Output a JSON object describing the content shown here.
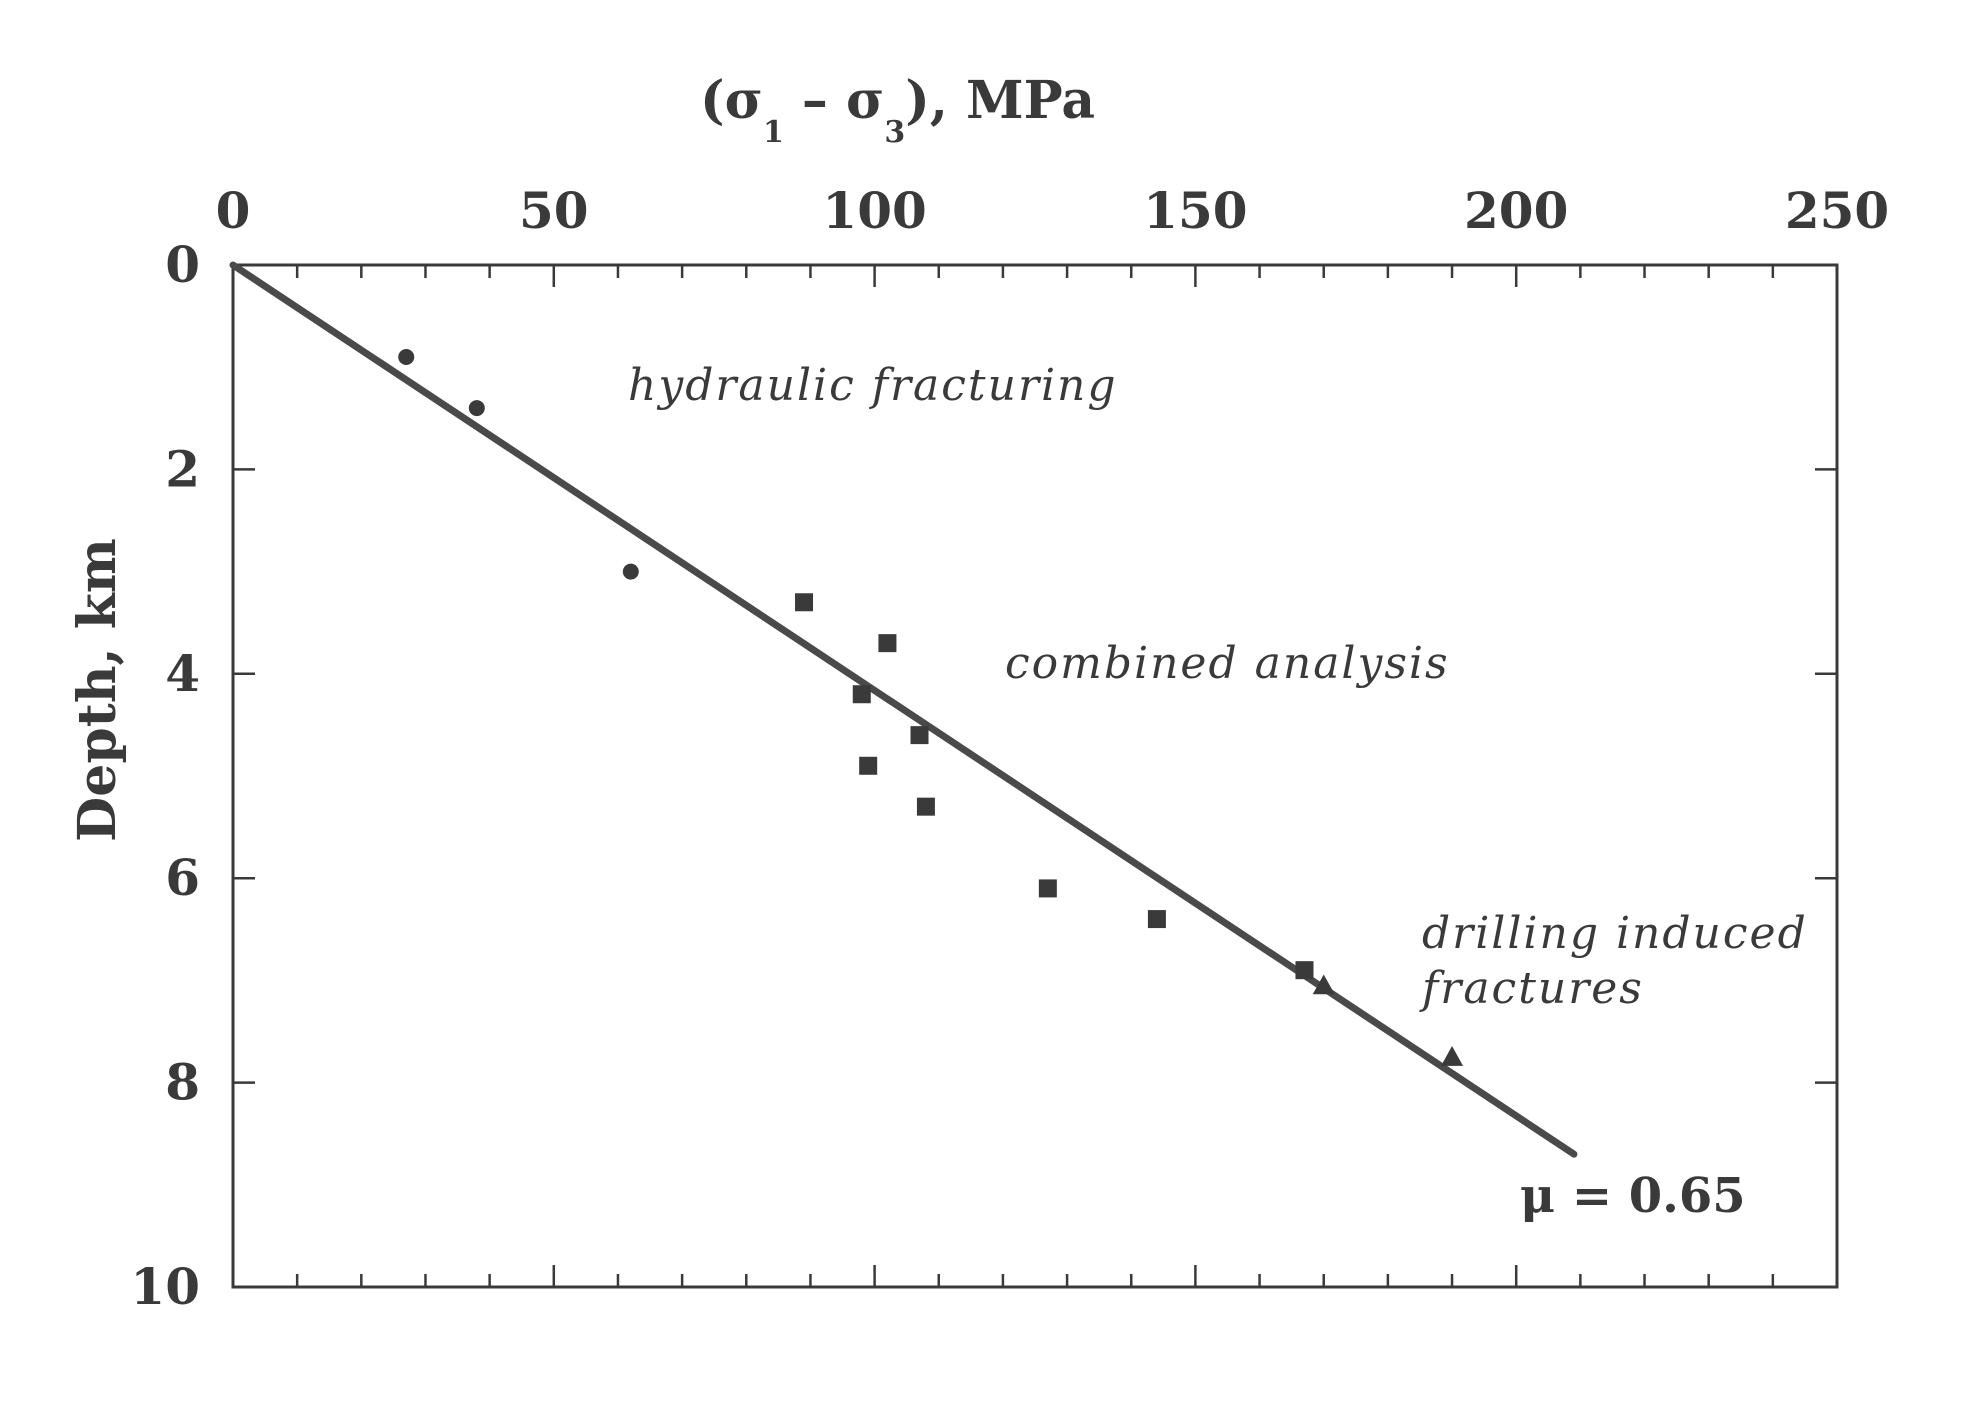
{
  "chart_data": {
    "type": "scatter",
    "title": "",
    "xlabel": "(σ1 – σ3), MPa",
    "xlabel_parts": {
      "open": "(σ",
      "sub1": "1",
      "minus": " – σ",
      "sub3": "3",
      "close": "), MPa"
    },
    "ylabel": "Depth, km",
    "xlim": [
      0,
      250
    ],
    "ylim": [
      0,
      10
    ],
    "y_inverted": true,
    "x_axis_position": "top",
    "grid": false,
    "x_ticks": [
      "0",
      "50",
      "100",
      "150",
      "200",
      "250"
    ],
    "y_ticks": [
      "0",
      "2",
      "4",
      "6",
      "8",
      "10"
    ],
    "series": [
      {
        "marker": "circle",
        "points": [
          [
            27,
            0.9
          ],
          [
            38,
            1.4
          ],
          [
            62,
            3.0
          ]
        ]
      },
      {
        "marker": "square",
        "points": [
          [
            89,
            3.3
          ],
          [
            102,
            3.7
          ],
          [
            98,
            4.2
          ],
          [
            107,
            4.6
          ],
          [
            99,
            4.9
          ],
          [
            108,
            5.3
          ],
          [
            127,
            6.1
          ],
          [
            144,
            6.4
          ],
          [
            167,
            6.9
          ]
        ]
      },
      {
        "marker": "triangle",
        "points": [
          [
            170,
            7.05
          ],
          [
            190,
            7.75
          ]
        ]
      }
    ],
    "fit_line": {
      "x": [
        0,
        209
      ],
      "y": [
        0,
        8.7
      ]
    },
    "annotations": {
      "hydraulic": "hydraulic  fracturing",
      "combined": "combined  analysis",
      "drilling_1": "drilling  induced",
      "drilling_2": "fractures",
      "mu": "μ = 0.65"
    },
    "colors": {
      "ink": "#3a3a3a",
      "line": "#4a4a4a"
    }
  }
}
